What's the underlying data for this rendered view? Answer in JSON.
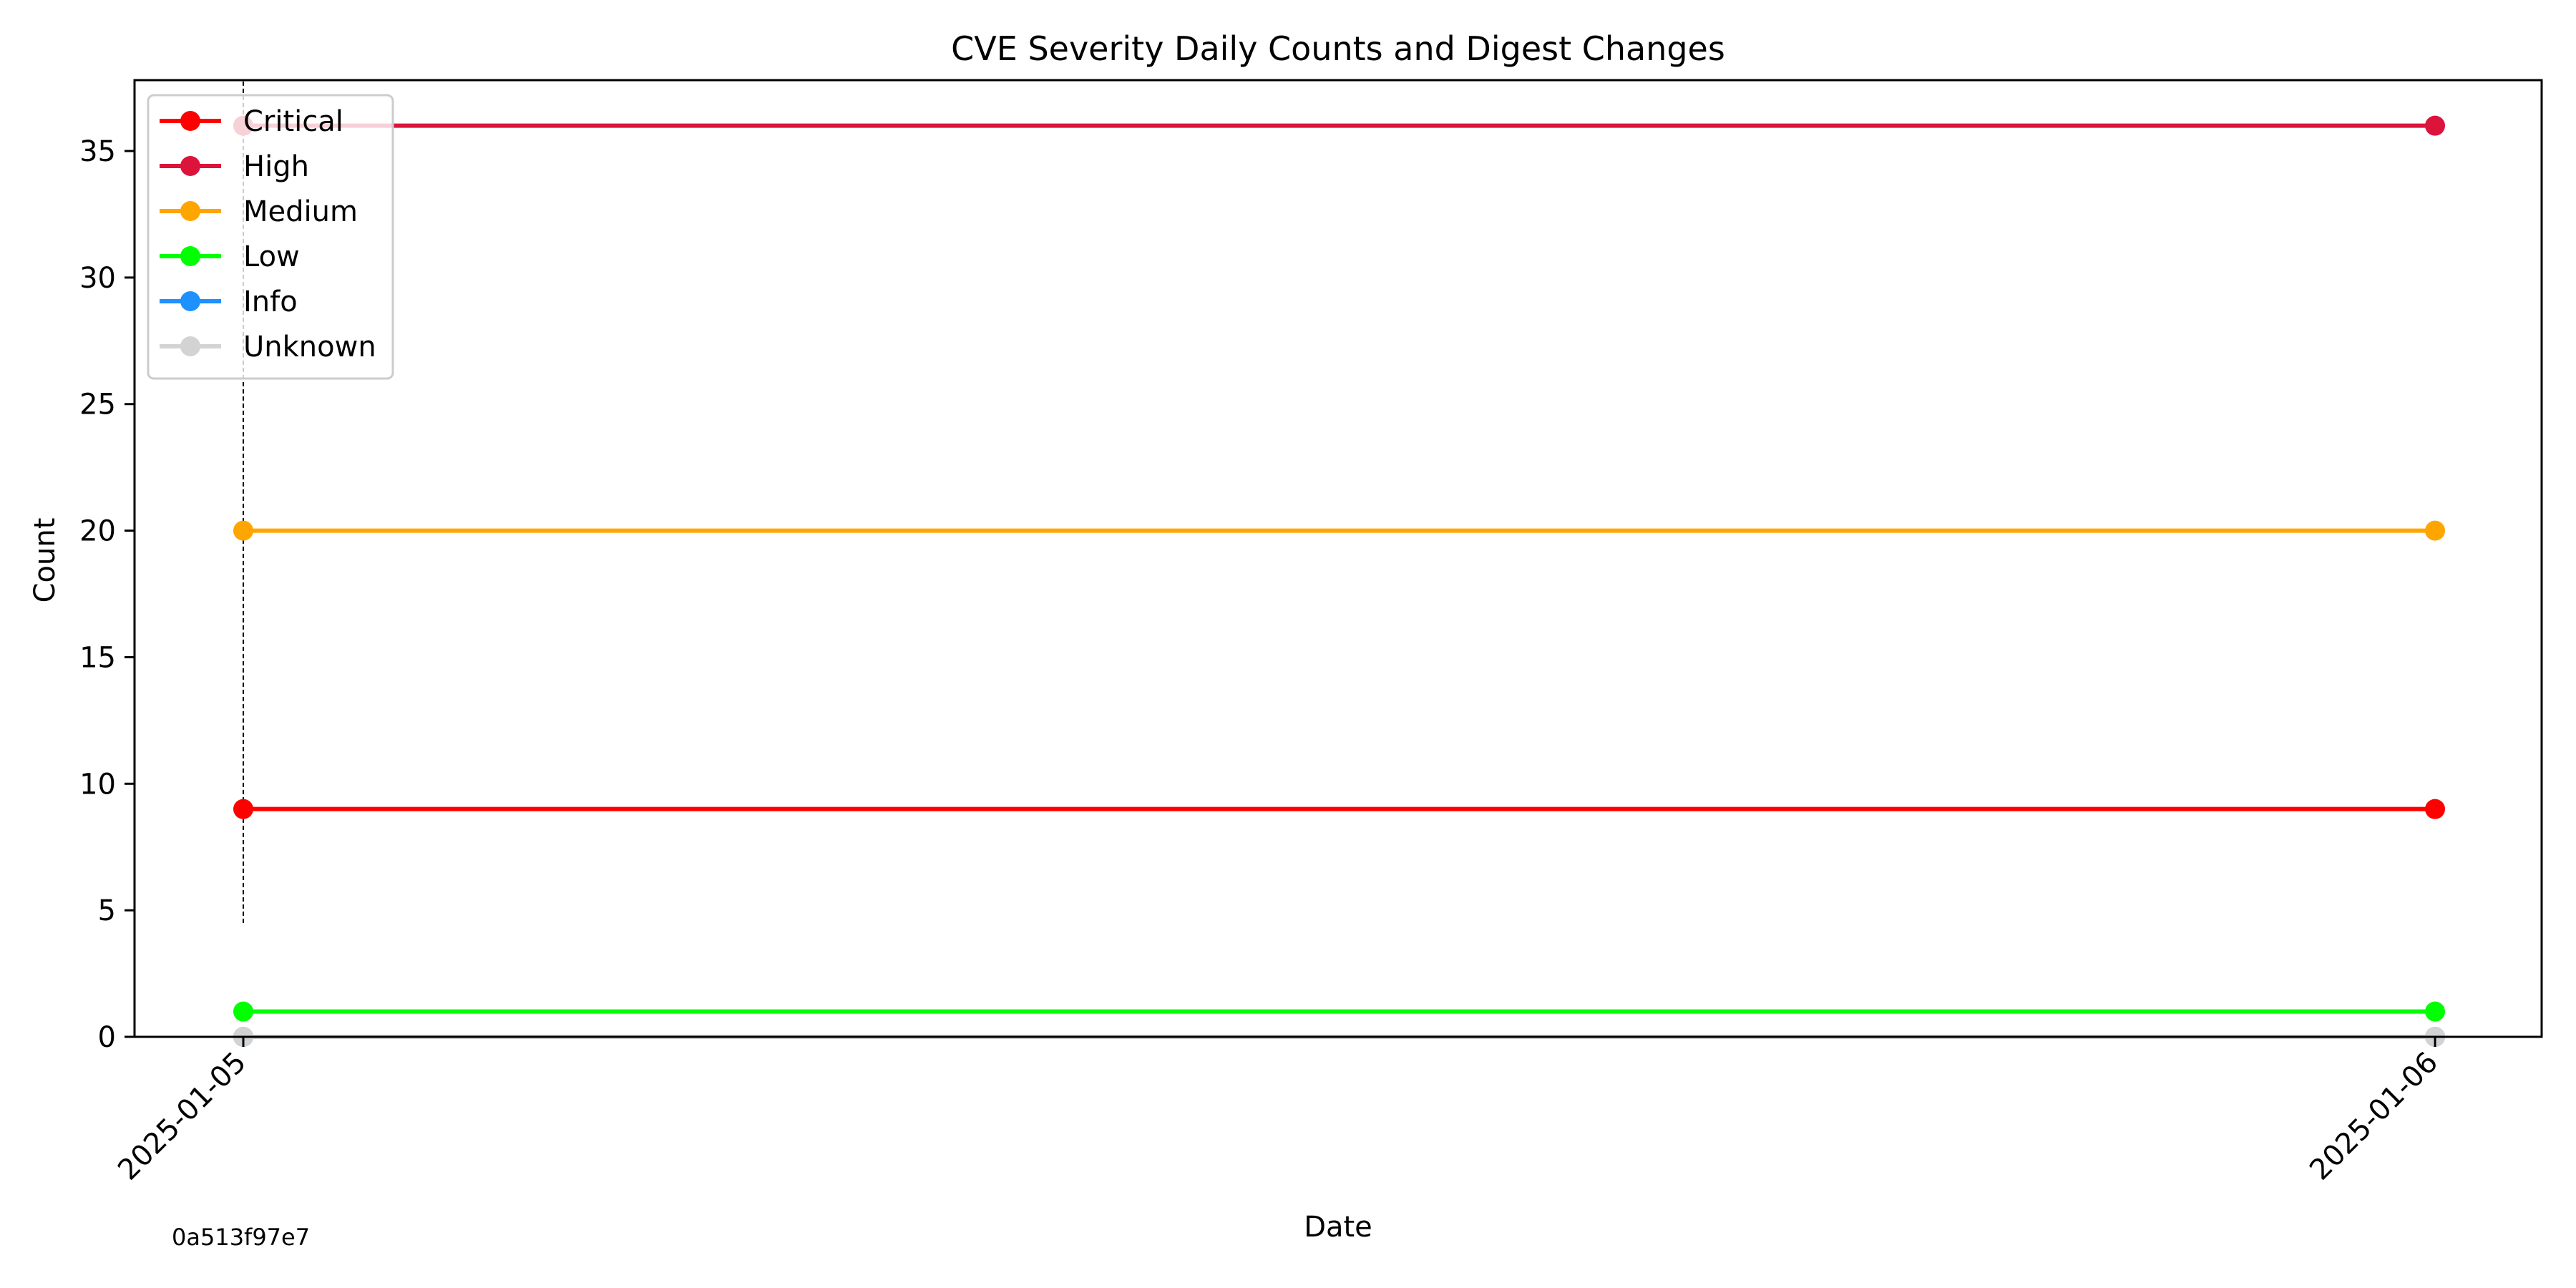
{
  "chart_data": {
    "type": "line",
    "title": "CVE Severity Daily Counts and Digest Changes",
    "xlabel": "Date",
    "ylabel": "Count",
    "x": [
      "2025-01-05",
      "2025-01-06"
    ],
    "ylim": [
      0,
      37.8
    ],
    "yticks": [
      0,
      5,
      10,
      15,
      20,
      25,
      30,
      35
    ],
    "legend_position": "top-left",
    "grid": false,
    "series": [
      {
        "name": "Critical",
        "color": "#ff0000",
        "values": [
          9,
          9
        ]
      },
      {
        "name": "High",
        "color": "#dc143c",
        "values": [
          36,
          36
        ]
      },
      {
        "name": "Medium",
        "color": "#ffa500",
        "values": [
          20,
          20
        ]
      },
      {
        "name": "Low",
        "color": "#00ff00",
        "values": [
          1,
          1
        ]
      },
      {
        "name": "Info",
        "color": "#1e90ff",
        "values": [
          0,
          0
        ]
      },
      {
        "name": "Unknown",
        "color": "#d3d3d3",
        "values": [
          0,
          0
        ]
      }
    ],
    "annotations": [
      {
        "type": "digest-change",
        "x": "2025-01-05",
        "y_from": 4.5,
        "y_to": 37.8,
        "label": "0a513f97e7"
      }
    ]
  }
}
